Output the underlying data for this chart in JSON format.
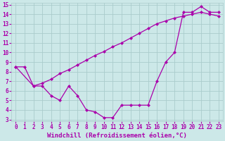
{
  "line1_x": [
    0,
    1,
    2,
    3,
    4,
    5,
    6,
    7,
    8,
    9,
    10,
    11,
    12,
    13,
    14,
    15,
    16,
    17,
    18,
    19,
    20,
    21,
    22,
    23
  ],
  "line1_y": [
    8.5,
    8.5,
    6.5,
    6.5,
    5.5,
    5.0,
    6.5,
    5.5,
    4.0,
    3.8,
    3.2,
    3.2,
    4.5,
    4.5,
    4.5,
    4.5,
    7.0,
    9.0,
    10.0,
    14.2,
    14.2,
    14.8,
    14.2,
    14.2
  ],
  "line2_x": [
    0,
    2,
    3,
    4,
    5,
    6,
    7,
    8,
    9,
    10,
    11,
    12,
    13,
    14,
    15,
    16,
    17,
    18,
    19,
    20,
    21,
    22,
    23
  ],
  "line2_y": [
    8.5,
    6.5,
    6.8,
    7.2,
    7.8,
    8.2,
    8.7,
    9.2,
    9.7,
    10.1,
    10.6,
    11.0,
    11.5,
    12.0,
    12.5,
    13.0,
    13.3,
    13.6,
    13.8,
    14.0,
    14.2,
    14.0,
    13.8
  ],
  "line_color": "#aa00aa",
  "bg_color": "#cce8e8",
  "grid_color": "#aacccc",
  "xlabel": "Windchill (Refroidissement éolien,°C)",
  "xlim_min": -0.5,
  "xlim_max": 23.5,
  "ylim_min": 2.8,
  "ylim_max": 15.2,
  "yticks": [
    3,
    4,
    5,
    6,
    7,
    8,
    9,
    10,
    11,
    12,
    13,
    14,
    15
  ],
  "xticks": [
    0,
    1,
    2,
    3,
    4,
    5,
    6,
    7,
    8,
    9,
    10,
    11,
    12,
    13,
    14,
    15,
    16,
    17,
    18,
    19,
    20,
    21,
    22,
    23
  ],
  "marker": "D",
  "markersize": 2.5,
  "linewidth": 0.9,
  "xlabel_fontsize": 6.5,
  "tick_fontsize": 5.5
}
